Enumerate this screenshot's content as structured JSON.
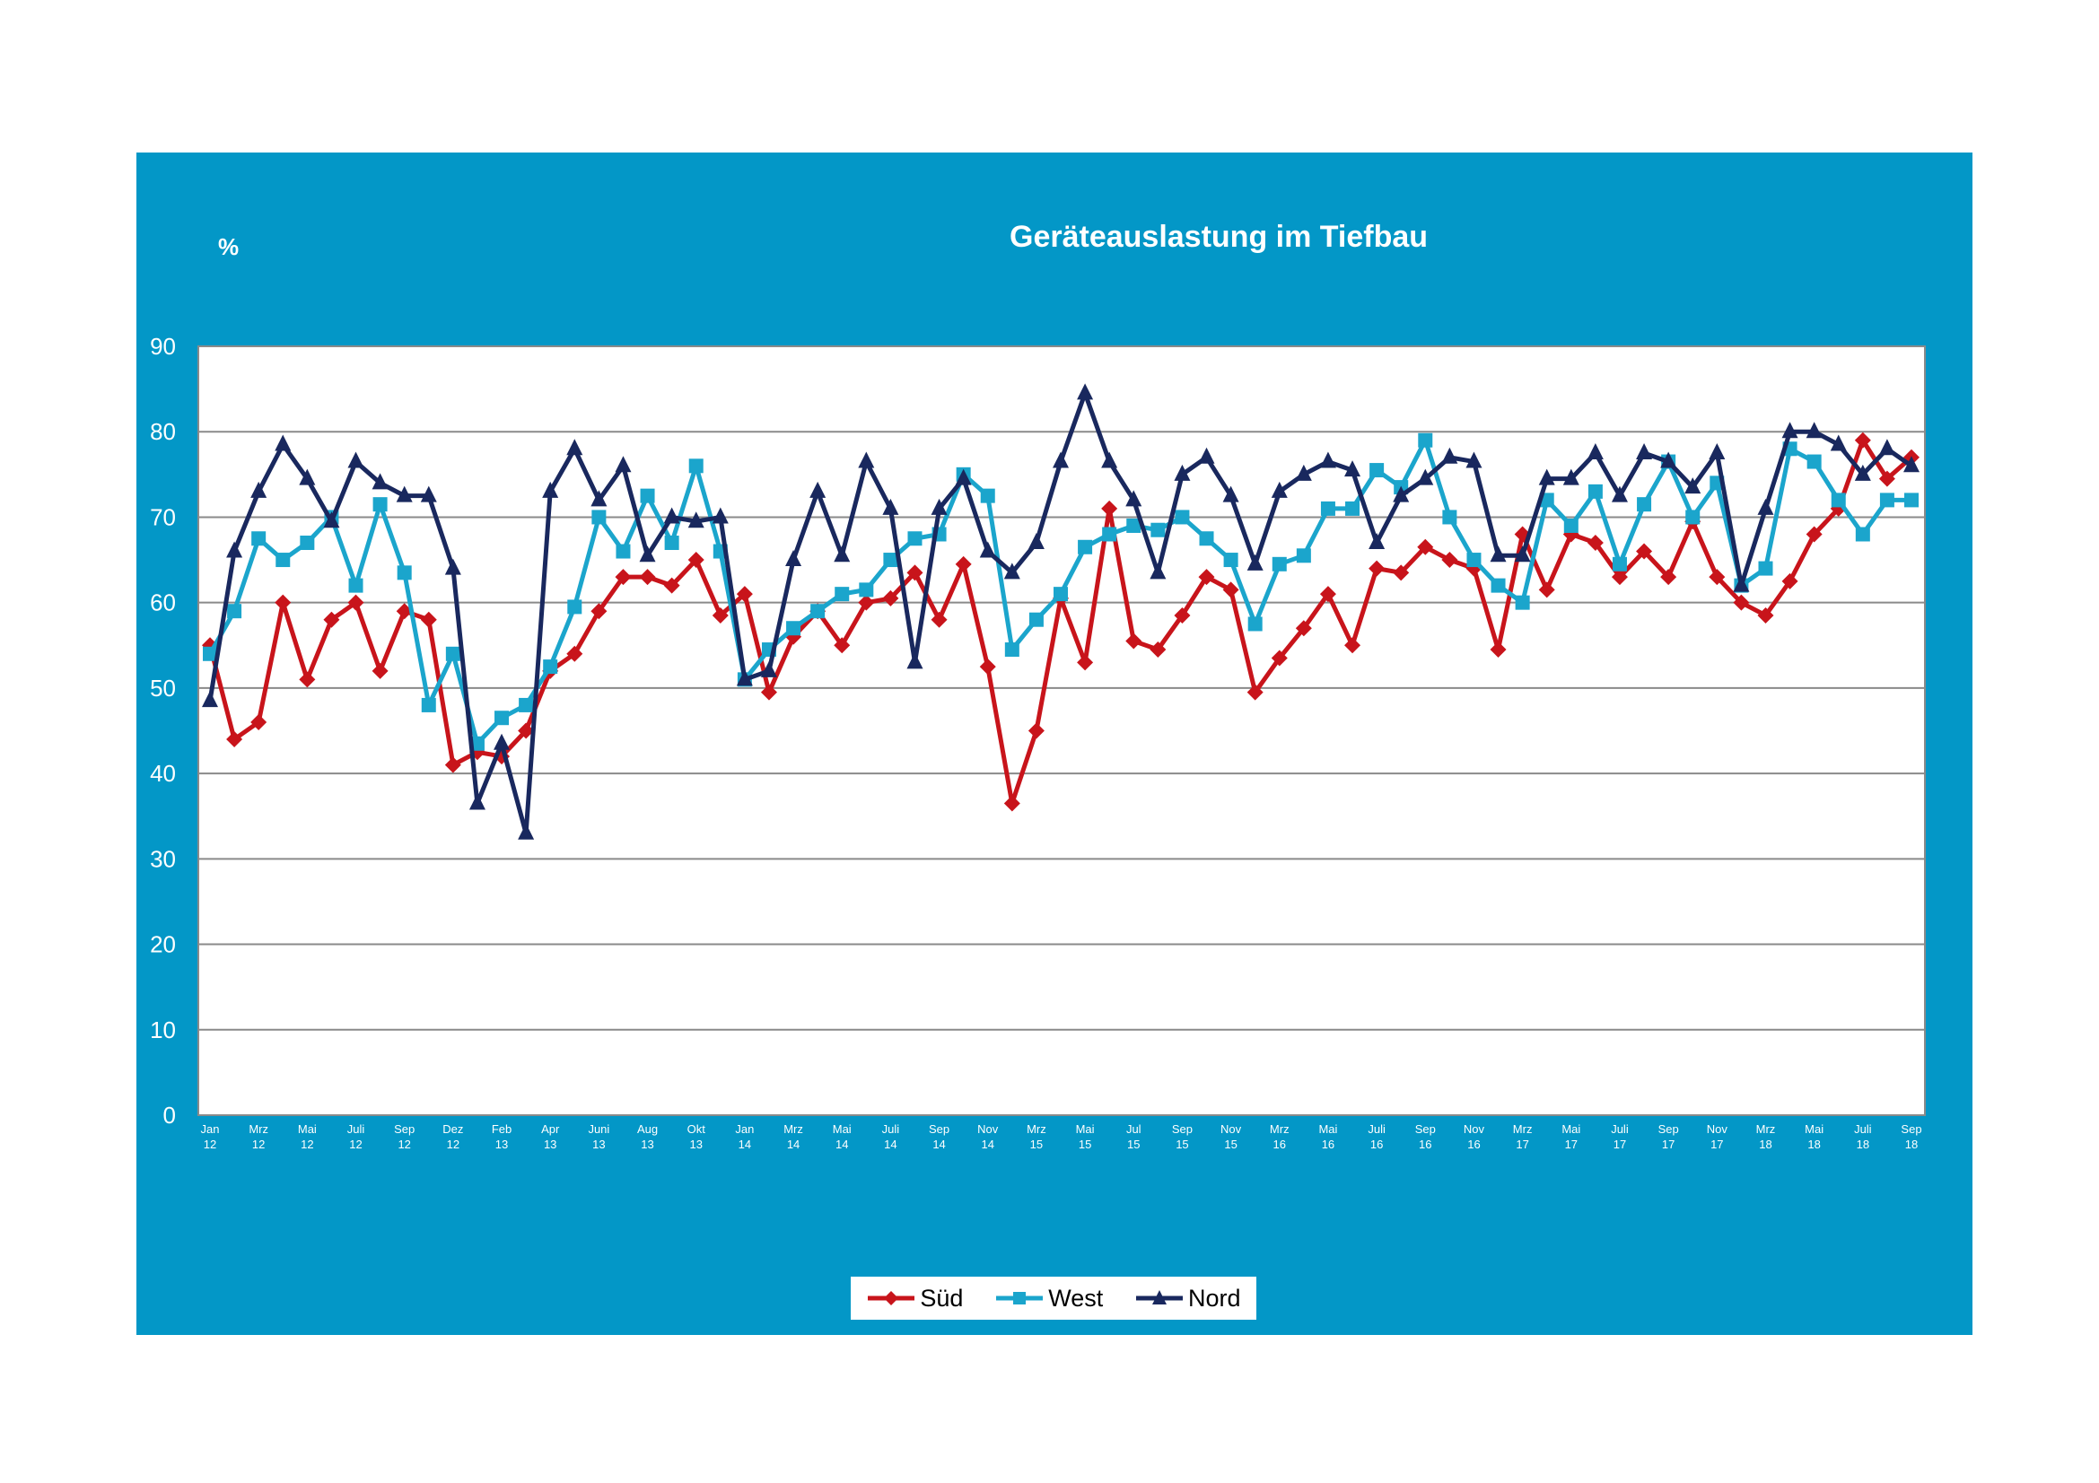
{
  "chart_data": {
    "type": "line",
    "title": "Geräteauslastung im Tiefbau",
    "ylabel": "%",
    "xlabel": "",
    "ylim": [
      0,
      90
    ],
    "yticks": [
      0,
      10,
      20,
      30,
      40,
      50,
      60,
      70,
      80,
      90
    ],
    "grid": true,
    "legend_position": "bottom",
    "x_tick_labels": [
      [
        "Jan",
        "12"
      ],
      [
        "Mrz",
        "12"
      ],
      [
        "Mai",
        "12"
      ],
      [
        "Juli",
        "12"
      ],
      [
        "Sep",
        "12"
      ],
      [
        "Dez",
        "12"
      ],
      [
        "Feb",
        "13"
      ],
      [
        "Apr",
        "13"
      ],
      [
        "Juni",
        "13"
      ],
      [
        "Aug",
        "13"
      ],
      [
        "Okt",
        "13"
      ],
      [
        "Jan",
        "14"
      ],
      [
        "Mrz",
        "14"
      ],
      [
        "Mai",
        "14"
      ],
      [
        "Juli",
        "14"
      ],
      [
        "Sep",
        "14"
      ],
      [
        "Nov",
        "14"
      ],
      [
        "Mrz",
        "15"
      ],
      [
        "Mai",
        "15"
      ],
      [
        "Jul",
        "15"
      ],
      [
        "Sep",
        "15"
      ],
      [
        "Nov",
        "15"
      ],
      [
        "Mrz",
        "16"
      ],
      [
        "Mai",
        "16"
      ],
      [
        "Juli",
        "16"
      ],
      [
        "Sep",
        "16"
      ],
      [
        "Nov",
        "16"
      ],
      [
        "Mrz",
        "17"
      ],
      [
        "Mai",
        "17"
      ],
      [
        "Juli",
        "17"
      ],
      [
        "Sep",
        "17"
      ],
      [
        "Nov",
        "17"
      ],
      [
        "Mrz",
        "18"
      ],
      [
        "Mai",
        "18"
      ],
      [
        "Juli",
        "18"
      ],
      [
        "Sep",
        "18"
      ]
    ],
    "series": [
      {
        "name": "Süd",
        "color": "#c8141b",
        "marker": "diamond",
        "values": [
          55,
          44,
          46,
          60,
          51,
          58,
          60,
          52,
          59,
          58,
          41,
          42.5,
          42,
          45,
          52,
          54,
          59,
          63,
          63,
          62,
          65,
          58.5,
          61,
          49.5,
          56,
          59,
          55,
          60,
          60.5,
          63.5,
          58,
          64.5,
          52.5,
          36.5,
          45,
          60.5,
          53,
          71,
          55.5,
          54.5,
          58.5,
          63,
          61.5,
          49.5,
          53.5,
          57,
          61,
          55,
          64,
          63.5,
          66.5,
          65,
          64,
          54.5,
          68,
          61.5,
          68,
          67,
          63,
          66,
          63,
          69.5,
          63,
          60,
          58.5,
          62.5,
          68,
          71,
          79,
          74.5,
          77
        ]
      },
      {
        "name": "West",
        "color": "#1ba5cc",
        "marker": "square",
        "values": [
          54,
          59,
          67.5,
          65,
          67,
          70,
          62,
          71.5,
          63.5,
          48,
          54,
          43.5,
          46.5,
          48,
          52.5,
          59.5,
          70,
          66,
          72.5,
          67,
          76,
          66,
          51,
          54.5,
          57,
          59,
          61,
          61.5,
          65,
          67.5,
          68,
          75,
          72.5,
          54.5,
          58,
          61,
          66.5,
          68,
          69,
          68.5,
          70,
          67.5,
          65,
          57.5,
          64.5,
          65.5,
          71,
          71,
          75.5,
          73.5,
          79,
          70,
          65,
          62,
          60,
          72,
          69,
          73,
          64.5,
          71.5,
          76.5,
          70,
          74,
          62,
          64,
          78,
          76.5,
          72,
          68,
          72,
          72
        ]
      },
      {
        "name": "Nord",
        "color": "#19285e",
        "marker": "triangle",
        "values": [
          48.5,
          66,
          73,
          78.5,
          74.5,
          69.5,
          76.5,
          74,
          72.5,
          72.5,
          64,
          36.5,
          43.5,
          33,
          73,
          78,
          72,
          76,
          65.5,
          70,
          69.5,
          70,
          51,
          52,
          65,
          73,
          65.5,
          76.5,
          71,
          53,
          71,
          74.5,
          66,
          63.5,
          67,
          76.5,
          84.5,
          76.5,
          72,
          63.5,
          75,
          77,
          72.5,
          64.5,
          73,
          75,
          76.5,
          75.5,
          67,
          72.5,
          74.5,
          77,
          76.5,
          65.5,
          65.5,
          74.5,
          74.5,
          77.5,
          72.5,
          77.5,
          76.5,
          73.5,
          77.5,
          62,
          71,
          80,
          80,
          78.5,
          75,
          78,
          76
        ]
      }
    ]
  }
}
